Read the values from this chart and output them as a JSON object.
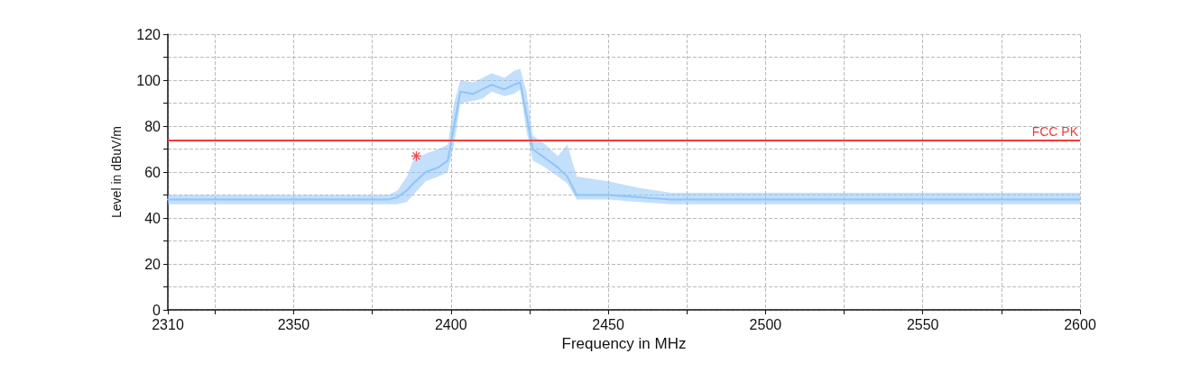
{
  "chart_data": {
    "type": "line",
    "xlabel": "Frequency in MHz",
    "ylabel": "Level in dBuV/m",
    "xlim": [
      2310,
      2600
    ],
    "xticks": [
      2310,
      {
        "value": 2325,
        "label": null
      },
      2350,
      {
        "value": 2375,
        "label": null
      },
      2400,
      {
        "value": 2425,
        "label": null
      },
      2450,
      {
        "value": 2475,
        "label": null
      },
      2500,
      {
        "value": 2525,
        "label": null
      },
      2550,
      {
        "value": 2575,
        "label": null
      },
      2600
    ],
    "ylim": [
      0,
      120
    ],
    "yticks": [
      0,
      {
        "value": 10,
        "label": null
      },
      20,
      {
        "value": 30,
        "label": null
      },
      40,
      {
        "value": 50,
        "label": null
      },
      60,
      {
        "value": 70,
        "label": null
      },
      80,
      {
        "value": 90,
        "label": null
      },
      100,
      {
        "value": 110,
        "label": null
      },
      120
    ],
    "grid": true,
    "marker": "none",
    "line_style": "solid",
    "series": [
      {
        "color": "#90c4f8",
        "x": [
          2310,
          2330,
          2350,
          2370,
          2380,
          2383,
          2386,
          2388,
          2392,
          2396,
          2399,
          2401,
          2403,
          2407,
          2410,
          2413,
          2417,
          2420,
          2422,
          2424,
          2426,
          2430,
          2434,
          2437,
          2440,
          2450,
          2460,
          2470,
          2500,
          2550,
          2600
        ],
        "values": [
          48,
          48,
          48,
          48,
          48,
          49,
          52,
          55,
          60,
          62,
          65,
          80,
          95,
          94,
          96,
          98,
          96,
          98,
          99,
          85,
          70,
          66,
          62,
          58,
          50,
          50,
          49,
          48,
          48,
          48,
          48
        ],
        "lower": [
          46,
          46,
          46,
          46,
          46,
          46,
          47,
          50,
          56,
          58,
          60,
          72,
          90,
          91,
          92,
          95,
          93,
          94,
          96,
          78,
          65,
          62,
          58,
          55,
          48,
          48,
          47,
          46,
          46,
          46,
          46
        ],
        "upper": [
          50,
          50,
          50,
          50,
          50,
          52,
          58,
          65,
          68,
          70,
          72,
          90,
          100,
          99,
          101,
          103,
          101,
          104,
          105,
          95,
          76,
          72,
          67,
          72,
          58,
          56,
          53,
          51,
          51,
          51,
          51
        ]
      },
      {
        "type": "scatter",
        "color": "#e8202a",
        "marker": "star",
        "x": [
          2389
        ],
        "values": [
          67
        ]
      }
    ],
    "ref_lines": [
      {
        "axis": "y",
        "value": 74,
        "label": "FCC PK",
        "color": "#f03c3c",
        "line_style": "solid"
      }
    ]
  }
}
